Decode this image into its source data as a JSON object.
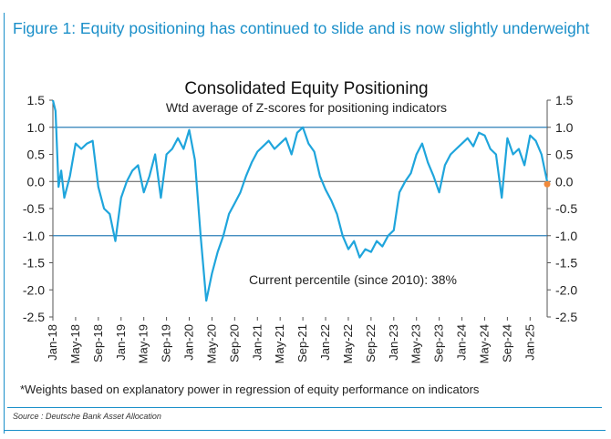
{
  "figure_title": "Figure 1: Equity positioning has continued to slide and is now slightly underweight",
  "footnote": "*Weights based on explanatory power in regression of equity performance on indicators",
  "source": "Source : Deutsche Bank Asset Allocation",
  "colors": {
    "line": "#1fa5dc",
    "marker": "#f08a3c",
    "refline": "#2b7fb8",
    "accent": "#1a8fc9"
  },
  "chart_data": {
    "type": "line",
    "title": "Consolidated Equity Positioning",
    "subtitle": "Wtd average of Z-scores for positioning indicators",
    "annotation": "Current percentile (since 2010): 38%",
    "ylim": [
      -2.5,
      1.5
    ],
    "xlim": [
      "2018-01",
      "2025-04"
    ],
    "yticks": [
      "1.5",
      "1.0",
      "0.5",
      "0.0",
      "-0.5",
      "-1.0",
      "-1.5",
      "-2.0",
      "-2.5"
    ],
    "xticks": [
      "Jan-18",
      "May-18",
      "Sep-18",
      "Jan-19",
      "May-19",
      "Sep-19",
      "Jan-20",
      "May-20",
      "Sep-20",
      "Jan-21",
      "May-21",
      "Sep-21",
      "Jan-22",
      "May-22",
      "Sep-22",
      "Jan-23",
      "May-23",
      "Sep-23",
      "Jan-24",
      "May-24",
      "Sep-24",
      "Jan-25"
    ],
    "reference_lines": [
      1.0,
      -1.0
    ],
    "series": [
      {
        "x": [
          "2018-01",
          "2018-01-15",
          "2018-02",
          "2018-02-15",
          "2018-03",
          "2018-04",
          "2018-05",
          "2018-06",
          "2018-07",
          "2018-08",
          "2018-09",
          "2018-10",
          "2018-11",
          "2018-12",
          "2019-01",
          "2019-02",
          "2019-03",
          "2019-04",
          "2019-05",
          "2019-06",
          "2019-07",
          "2019-08",
          "2019-09",
          "2019-10",
          "2019-11",
          "2019-12",
          "2020-01",
          "2020-02",
          "2020-03",
          "2020-04",
          "2020-05",
          "2020-06",
          "2020-07",
          "2020-08",
          "2020-09",
          "2020-10",
          "2020-11",
          "2020-12",
          "2021-01",
          "2021-02",
          "2021-03",
          "2021-04",
          "2021-05",
          "2021-06",
          "2021-07",
          "2021-08",
          "2021-09",
          "2021-10",
          "2021-11",
          "2021-12",
          "2022-01",
          "2022-02",
          "2022-03",
          "2022-04",
          "2022-05",
          "2022-06",
          "2022-07",
          "2022-08",
          "2022-09",
          "2022-10",
          "2022-11",
          "2022-12",
          "2023-01",
          "2023-02",
          "2023-03",
          "2023-04",
          "2023-05",
          "2023-06",
          "2023-07",
          "2023-08",
          "2023-09",
          "2023-10",
          "2023-11",
          "2023-12",
          "2024-01",
          "2024-02",
          "2024-03",
          "2024-04",
          "2024-05",
          "2024-06",
          "2024-07",
          "2024-08",
          "2024-09",
          "2024-10",
          "2024-11",
          "2024-12",
          "2025-01",
          "2025-02",
          "2025-03",
          "2025-04"
        ],
        "y": [
          1.5,
          1.3,
          -0.1,
          0.2,
          -0.3,
          0.1,
          0.7,
          0.6,
          0.7,
          0.75,
          -0.1,
          -0.5,
          -0.6,
          -1.1,
          -0.3,
          0.0,
          0.2,
          0.3,
          -0.2,
          0.1,
          0.5,
          -0.3,
          0.5,
          0.6,
          0.8,
          0.6,
          0.95,
          0.4,
          -1.0,
          -2.2,
          -1.7,
          -1.3,
          -1.0,
          -0.6,
          -0.4,
          -0.2,
          0.1,
          0.35,
          0.55,
          0.65,
          0.75,
          0.6,
          0.7,
          0.8,
          0.5,
          0.9,
          1.0,
          0.7,
          0.55,
          0.1,
          -0.15,
          -0.35,
          -0.6,
          -1.0,
          -1.25,
          -1.1,
          -1.4,
          -1.25,
          -1.3,
          -1.1,
          -1.2,
          -1.0,
          -0.9,
          -0.2,
          0.0,
          0.15,
          0.5,
          0.7,
          0.35,
          0.1,
          -0.2,
          0.3,
          0.5,
          0.6,
          0.7,
          0.8,
          0.65,
          0.9,
          0.85,
          0.6,
          0.5,
          -0.3,
          0.8,
          0.5,
          0.6,
          0.3,
          0.85,
          0.75,
          0.5,
          0.0
        ]
      }
    ],
    "last_point": {
      "x": "2025-04",
      "y": -0.05
    }
  }
}
